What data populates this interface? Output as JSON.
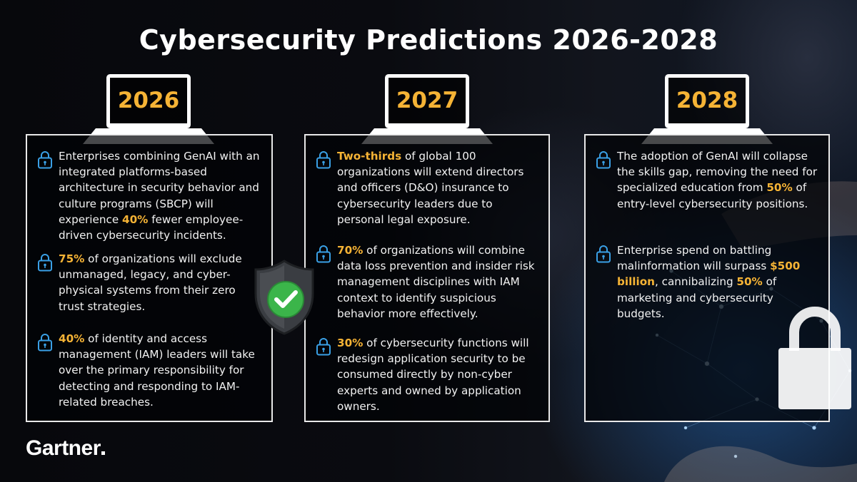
{
  "title": "Cybersecurity Predictions 2026-2028",
  "brand": "Gartner",
  "colors": {
    "accent": "#f5b335",
    "lock_icon": "#3aa0e6",
    "background": "#07080c"
  },
  "columns": [
    {
      "year": "2026",
      "items": [
        {
          "parts": [
            "Enterprises combining GenAI with an integrated platforms-based architecture in security behavior and culture programs (SBCP) will experience ",
            "40%",
            " fewer employee-driven cybersecurity incidents."
          ]
        },
        {
          "parts": [
            "",
            "75%",
            " of organizations will exclude unmanaged, legacy, and cyber-physical systems from their zero trust strategies."
          ]
        },
        {
          "parts": [
            "",
            "40%",
            " of identity and access management (IAM) leaders will take over the primary responsibility for detecting and responding to IAM-related breaches."
          ]
        }
      ]
    },
    {
      "year": "2027",
      "items": [
        {
          "parts": [
            "",
            "Two-thirds",
            " of global 100 organizations will extend directors and officers (D&O) insurance to cybersecurity leaders due to personal legal exposure."
          ]
        },
        {
          "parts": [
            "",
            "70%",
            " of organizations will combine data loss prevention and insider risk management disciplines with IAM context to identify suspicious behavior more effectively."
          ]
        },
        {
          "parts": [
            "",
            "30%",
            " of cybersecurity functions will redesign application security to be consumed directly by non-cyber experts and owned by application owners."
          ]
        }
      ]
    },
    {
      "year": "2028",
      "items": [
        {
          "parts": [
            "The adoption of GenAI will collapse the skills gap, removing the need for specialized education from ",
            "50%",
            " of entry-level cybersecurity positions."
          ]
        },
        {
          "parts": [
            "Enterprise spend on battling malinformation will surpass ",
            "$500 billion",
            ", cannibalizing ",
            "50%",
            " of marketing and cybersecurity budgets."
          ]
        }
      ]
    }
  ]
}
